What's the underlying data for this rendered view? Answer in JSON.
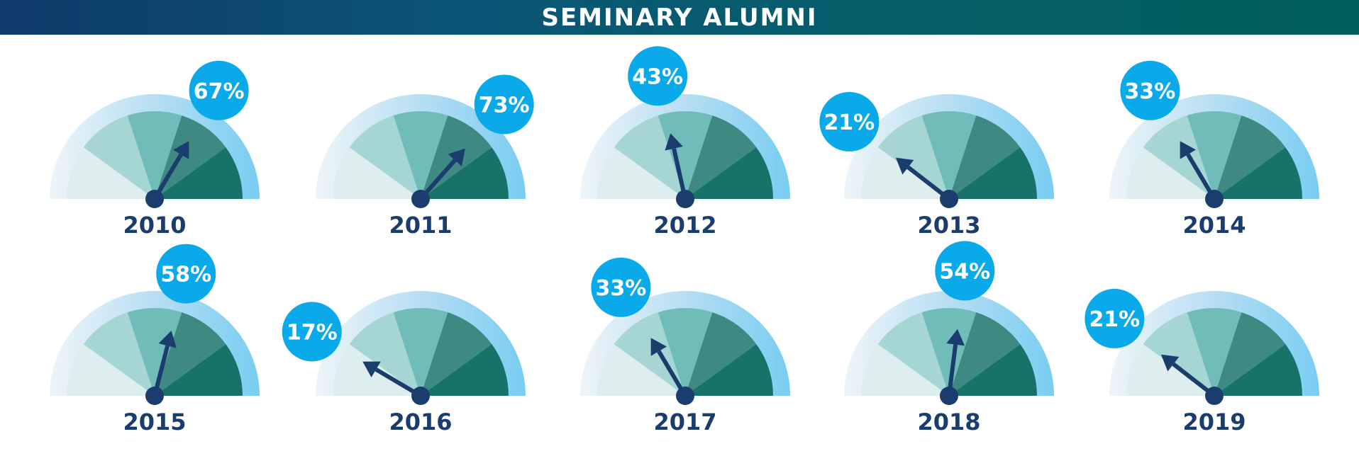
{
  "header": {
    "title": "SEMINARY ALUMNI"
  },
  "chart_data": {
    "type": "gauge",
    "title": "SEMINARY ALUMNI",
    "value_unit": "%",
    "range": [
      0,
      100
    ],
    "categories": [
      "2010",
      "2011",
      "2012",
      "2013",
      "2014",
      "2015",
      "2016",
      "2017",
      "2018",
      "2019"
    ],
    "values": [
      67,
      73,
      43,
      21,
      33,
      58,
      17,
      33,
      54,
      21
    ],
    "value_labels": [
      "67%",
      "73%",
      "43%",
      "21%",
      "33%",
      "58%",
      "17%",
      "33%",
      "54%",
      "21%"
    ]
  },
  "colors": {
    "header_start": "#0f3a6b",
    "header_end": "#015f5c",
    "outer_ring": "#8fd3f2",
    "segments": [
      "#deeeee",
      "#a5d6d3",
      "#6fbcb9",
      "#3e8a82",
      "#17726a"
    ],
    "needle": "#1b3d6e",
    "bubble": "#0aa9ea",
    "label_text": "#1b3d6e",
    "bubble_text": "#ffffff"
  }
}
